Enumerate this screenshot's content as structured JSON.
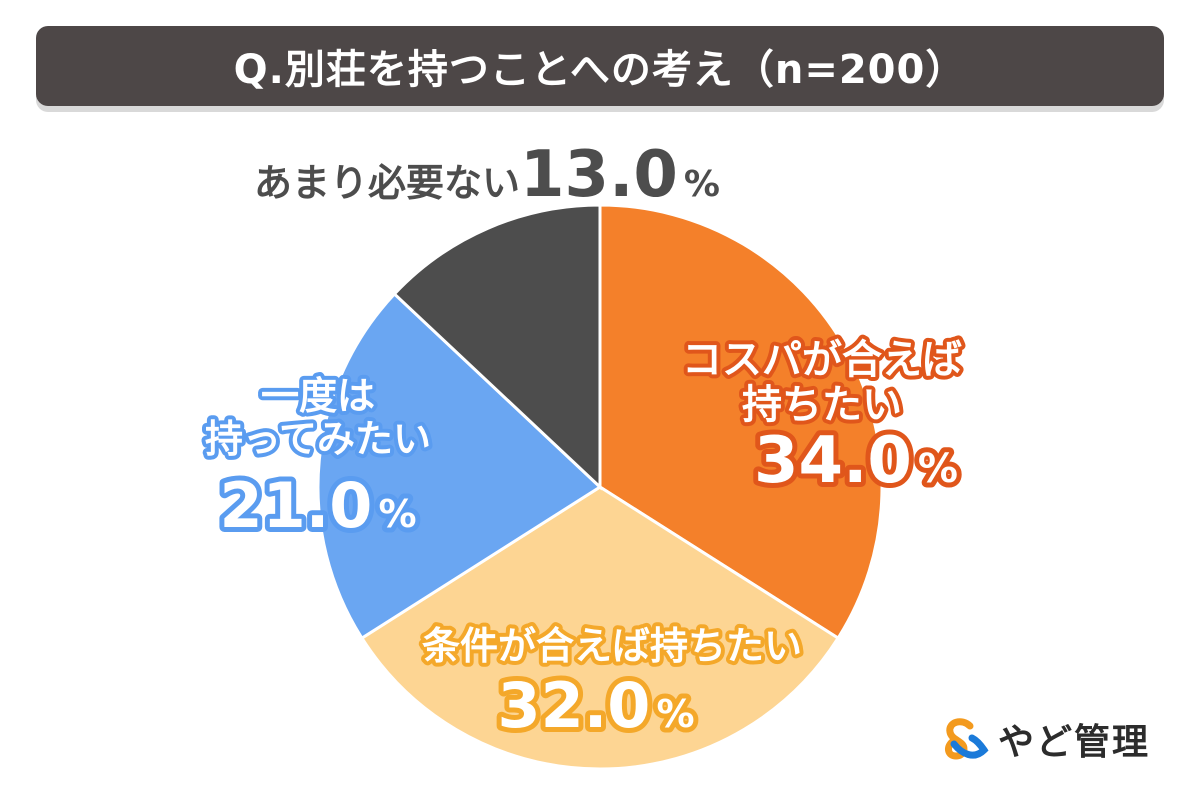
{
  "title": "Q.別荘を持つことへの考え（n=200）",
  "logo": {
    "text": "やど管理",
    "icon": "ampersand-logo-icon",
    "colors": [
      "#f39a1e",
      "#1b7ad9"
    ]
  },
  "chart_data": {
    "type": "pie",
    "title": "Q.別荘を持つことへの考え（n=200）",
    "unit": "%",
    "start_angle_deg": 0,
    "direction": "clockwise",
    "slices": [
      {
        "label_lines": [
          "コスパが合えば",
          "持ちたい"
        ],
        "value": 34.0,
        "value_text": "34.0",
        "color": "#f4802a",
        "label_color": "#ffffff",
        "outline_color": "#e0561b"
      },
      {
        "label_lines": [
          "条件が合えば持ちたい"
        ],
        "value": 32.0,
        "value_text": "32.0",
        "color": "#fdd593",
        "label_color": "#ffffff",
        "outline_color": "#f4a82a"
      },
      {
        "label_lines": [
          "一度は",
          "持ってみたい"
        ],
        "value": 21.0,
        "value_text": "21.0",
        "color": "#6aa6f2",
        "label_color": "#ffffff",
        "outline_color": "#5a9cf0"
      },
      {
        "label_lines": [
          "あまり必要ない"
        ],
        "value": 13.0,
        "value_text": "13.0",
        "color": "#4d4d4d",
        "label_color": "#4d4d4d",
        "outline_color": "#ffffff"
      }
    ]
  }
}
